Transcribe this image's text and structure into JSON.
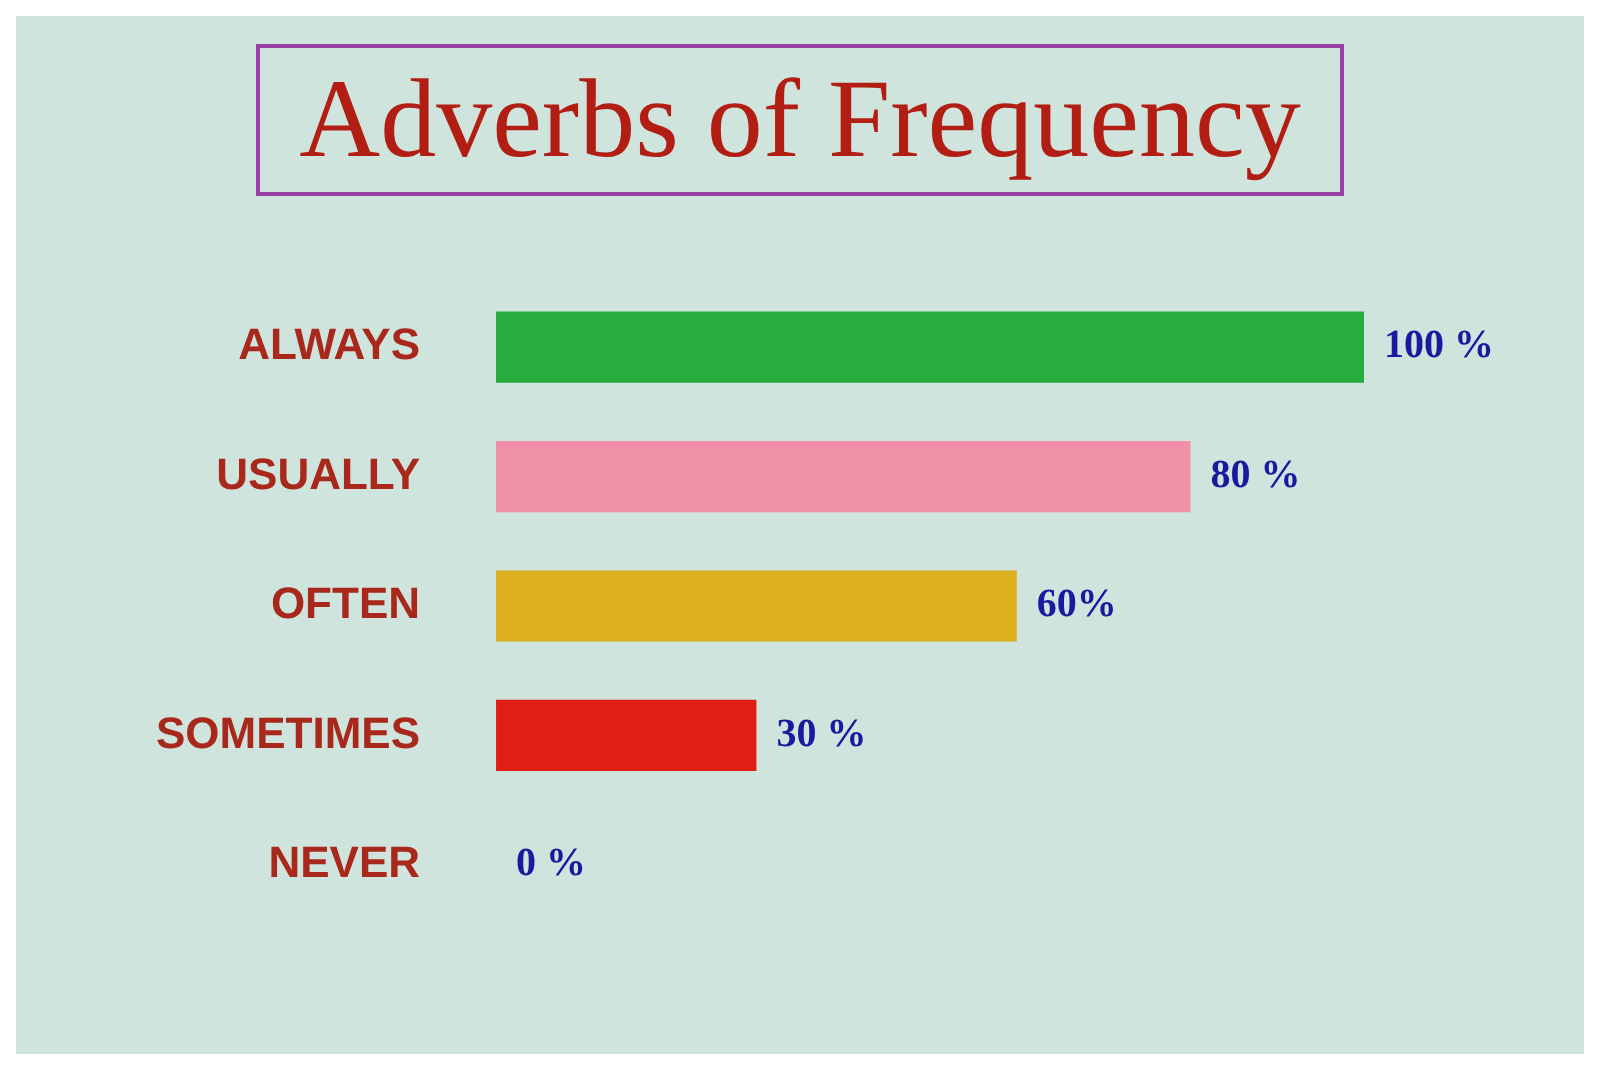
{
  "chart_data": {
    "type": "bar",
    "orientation": "horizontal",
    "title": "Adverbs of Frequency",
    "categories": [
      "ALWAYS",
      "USUALLY",
      "OFTEN",
      "SOMETIMES",
      "NEVER"
    ],
    "values": [
      100,
      80,
      60,
      30,
      0
    ],
    "colors": [
      "#27ad3d",
      "#ef8fa8",
      "#dcb01c",
      "#e01e14",
      "#1a5fb4"
    ],
    "value_labels": [
      "100 %",
      "80 %",
      "60%",
      "30 %",
      "0 %"
    ],
    "xlim": [
      0,
      100
    ],
    "tick_labels": "y"
  }
}
